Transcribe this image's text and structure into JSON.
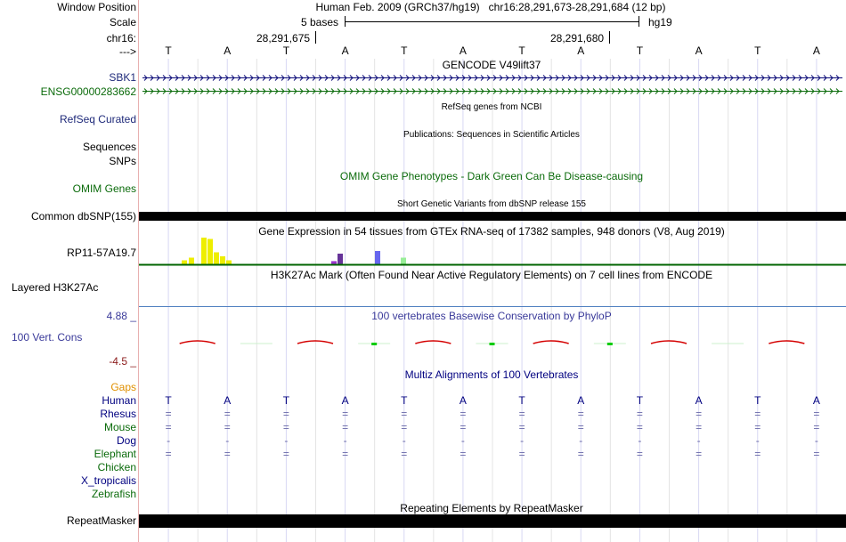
{
  "header": {
    "window_position_label": "Window Position",
    "scale_label": "Scale",
    "chrom_label": "chr16:",
    "arrow_label": "--->",
    "assembly_text": "Human Feb. 2009 (GRCh37/hg19)",
    "position_text": "chr16:28,291,673-28,291,684 (12 bp)",
    "scale_text": "5 bases",
    "scale_db": "hg19",
    "coord_left": "28,291,675",
    "coord_right": "28,291,680"
  },
  "bases": [
    "T",
    "A",
    "T",
    "A",
    "T",
    "A",
    "T",
    "A",
    "T",
    "A",
    "T",
    "A"
  ],
  "tracks": {
    "gencode": {
      "title": "GENCODE V49lift37",
      "gene1": "SBK1",
      "gene2": "ENSG00000283662"
    },
    "refseq": {
      "label": "RefSeq Curated",
      "title": "RefSeq genes from NCBI"
    },
    "pubs": {
      "label1": "Sequences",
      "label2": "SNPs",
      "title": "Publications: Sequences in Scientific Articles"
    },
    "omim": {
      "label": "OMIM Genes",
      "title": "OMIM Gene Phenotypes - Dark Green Can Be Disease-causing"
    },
    "dbsnp": {
      "label": "Common dbSNP(155)",
      "title": "Short Genetic Variants from dbSNP release 155"
    },
    "gtex": {
      "label": "RP11-57A19.7",
      "title": "Gene Expression in 54 tissues from GTEx RNA-seq of 17382 samples, 948 donors (V8, Aug 2019)"
    },
    "h3k27ac": {
      "label": "Layered H3K27Ac",
      "title": "H3K27Ac Mark (Often Found Near Active Regulatory Elements) on 7 cell lines from ENCODE"
    },
    "phylop": {
      "label": "100 Vert. Cons",
      "max": "4.88 _",
      "min": "-4.5 _",
      "title": "100 vertebrates Basewise Conservation by PhyloP"
    },
    "multiz": {
      "title": "Multiz Alignments of 100 Vertebrates",
      "gaps_label": "Gaps"
    },
    "repeatmasker": {
      "label": "RepeatMasker",
      "title": "Repeating Elements by RepeatMasker"
    }
  },
  "species": [
    {
      "name": "Human",
      "color": "#000080",
      "row": [
        "T",
        "A",
        "T",
        "A",
        "T",
        "A",
        "T",
        "A",
        "T",
        "A",
        "T",
        "A"
      ]
    },
    {
      "name": "Rhesus",
      "color": "#000080",
      "row": [
        "=",
        "=",
        "=",
        "=",
        "=",
        "=",
        "=",
        "=",
        "=",
        "=",
        "=",
        "="
      ]
    },
    {
      "name": "Mouse",
      "color": "#0b6b0b",
      "row": [
        "=",
        "=",
        "=",
        "=",
        "=",
        "=",
        "=",
        "=",
        "=",
        "=",
        "=",
        "="
      ]
    },
    {
      "name": "Dog",
      "color": "#000080",
      "row": [
        "-",
        "-",
        "-",
        "-",
        "-",
        "-",
        "-",
        "-",
        "-",
        "-",
        "-",
        "-"
      ]
    },
    {
      "name": "Elephant",
      "color": "#0b6b0b",
      "row": [
        "=",
        "=",
        "=",
        "=",
        "=",
        "=",
        "=",
        "=",
        "=",
        "=",
        "=",
        "="
      ]
    },
    {
      "name": "Chicken",
      "color": "#0b6b0b",
      "row": [
        "",
        "",
        "",
        "",
        "",
        "",
        "",
        "",
        "",
        "",
        "",
        ""
      ]
    },
    {
      "name": "X_tropicalis",
      "color": "#000080",
      "row": [
        "",
        "",
        "",
        "",
        "",
        "",
        "",
        "",
        "",
        "",
        "",
        ""
      ]
    },
    {
      "name": "Zebrafish",
      "color": "#0b6b0b",
      "row": [
        "",
        "",
        "",
        "",
        "",
        "",
        "",
        "",
        "",
        "",
        "",
        ""
      ]
    }
  ],
  "gtex_bars": [
    0.15,
    0.25,
    1.0,
    0.95,
    0.45,
    0.3,
    0.15,
    0.12,
    0.4,
    0.5,
    0.25
  ],
  "phylop_values": [
    -0.9,
    0,
    -0.9,
    0.12,
    -0.9,
    0.08,
    -0.9,
    0.15,
    -0.9,
    0,
    -0.9
  ],
  "colors": {
    "gaps": "#e09000",
    "gene_blue": "#0c0c78",
    "gene_green": "#0b6b0b",
    "phylop_pos": "#00cc00",
    "phylop_neg": "#d40000",
    "gtex_baseline": "#006400",
    "h3k27ac_line": "#5080c0"
  }
}
